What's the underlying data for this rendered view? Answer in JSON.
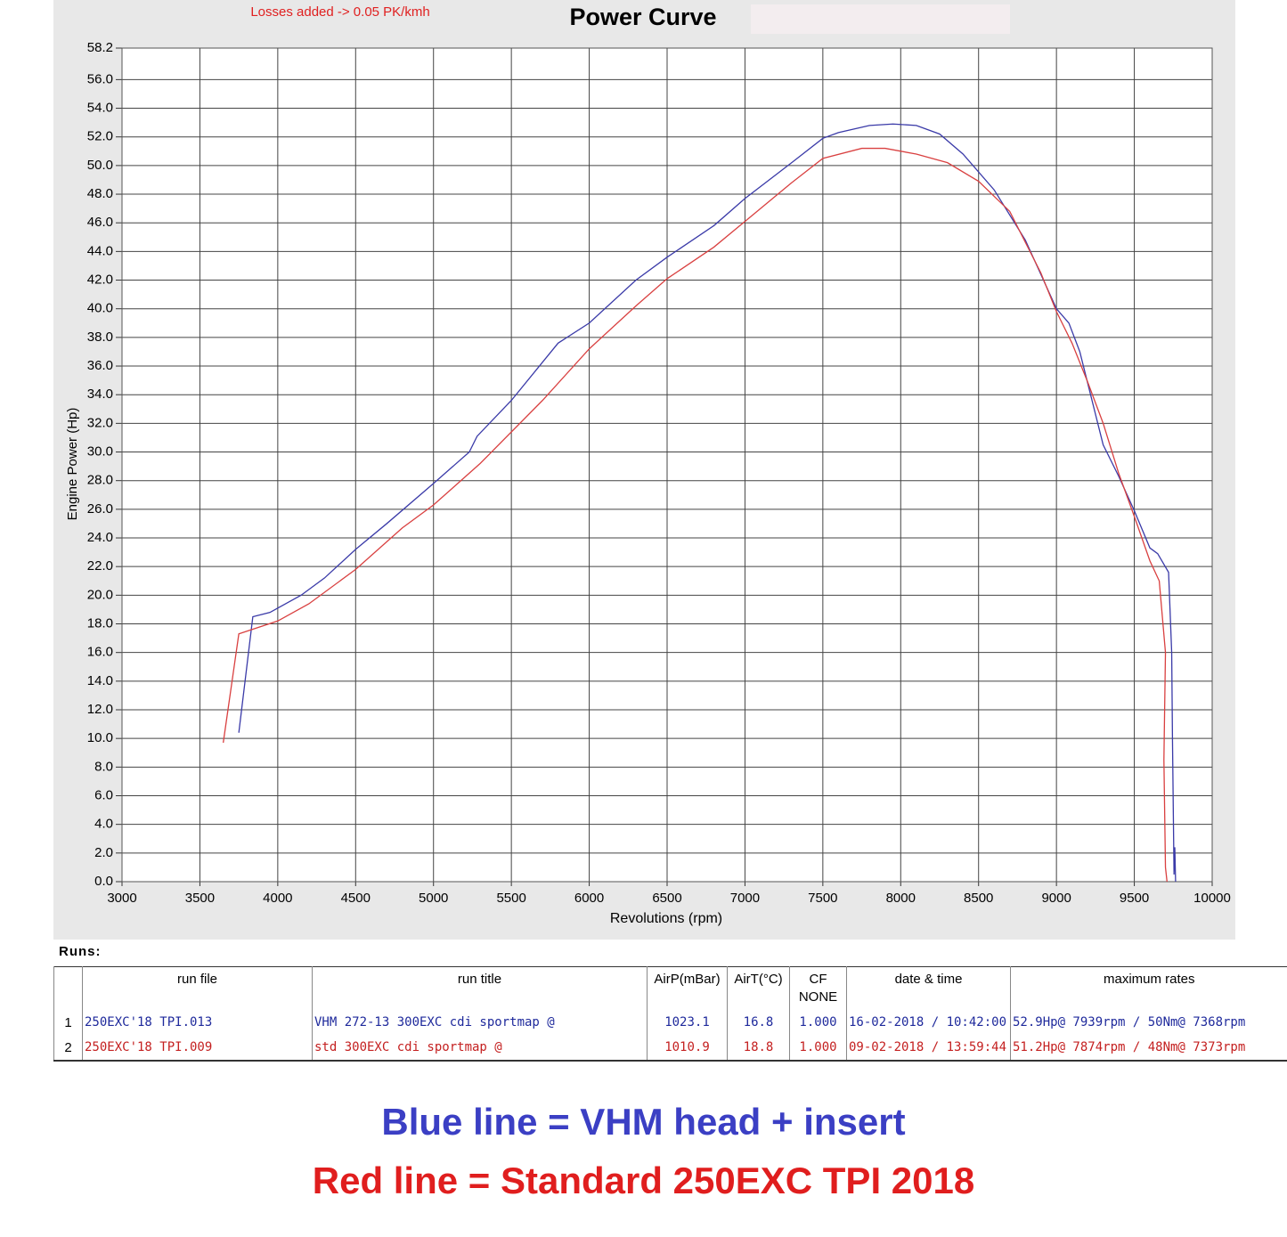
{
  "chart_data": {
    "type": "line",
    "title": "Power Curve",
    "annotation": "Losses added -> 0.05 PK/kmh",
    "x_label": "Revolutions (rpm)",
    "y_label": "Engine Power (Hp)",
    "xlim": [
      3000,
      10000
    ],
    "ylim": [
      0,
      58.2
    ],
    "grid": true,
    "xticks": [
      3000,
      3500,
      4000,
      4500,
      5000,
      5500,
      6000,
      6500,
      7000,
      7500,
      8000,
      8500,
      9000,
      9500,
      10000
    ],
    "yticks": [
      {
        "value": 0,
        "label": "0.0"
      },
      {
        "value": 2,
        "label": "2.0"
      },
      {
        "value": 4,
        "label": "4.0"
      },
      {
        "value": 6,
        "label": "6.0"
      },
      {
        "value": 8,
        "label": "8.0"
      },
      {
        "value": 10,
        "label": "10.0"
      },
      {
        "value": 12,
        "label": "12.0"
      },
      {
        "value": 14,
        "label": "14.0"
      },
      {
        "value": 16,
        "label": "16.0"
      },
      {
        "value": 18,
        "label": "18.0"
      },
      {
        "value": 20,
        "label": "20.0"
      },
      {
        "value": 22,
        "label": "22.0"
      },
      {
        "value": 24,
        "label": "24.0"
      },
      {
        "value": 26,
        "label": "26.0"
      },
      {
        "value": 28,
        "label": "28.0"
      },
      {
        "value": 30,
        "label": "30.0"
      },
      {
        "value": 32,
        "label": "32.0"
      },
      {
        "value": 34,
        "label": "34.0"
      },
      {
        "value": 36,
        "label": "36.0"
      },
      {
        "value": 38,
        "label": "38.0"
      },
      {
        "value": 40,
        "label": "40.0"
      },
      {
        "value": 42,
        "label": "42.0"
      },
      {
        "value": 44,
        "label": "44.0"
      },
      {
        "value": 46,
        "label": "46.0"
      },
      {
        "value": 48,
        "label": "48.0"
      },
      {
        "value": 50,
        "label": "50.0"
      },
      {
        "value": 52,
        "label": "52.0"
      },
      {
        "value": 54,
        "label": "54.0"
      },
      {
        "value": 56,
        "label": "56.0"
      },
      58.2
    ],
    "series": [
      {
        "color": "#3a3aa8",
        "x": [
          3750,
          3840,
          3950,
          4000,
          4150,
          4300,
          4500,
          4700,
          5000,
          5230,
          5280,
          5500,
          5800,
          6000,
          6300,
          6500,
          6800,
          7000,
          7300,
          7500,
          7600,
          7800,
          7950,
          8100,
          8250,
          8400,
          8600,
          8800,
          9000,
          9080,
          9150,
          9300,
          9400,
          9500,
          9600,
          9650,
          9720,
          9740,
          9745,
          9755,
          9760,
          9765
        ],
        "values": [
          10.4,
          18.5,
          18.8,
          19.1,
          20.0,
          21.2,
          23.2,
          25.0,
          27.8,
          30.0,
          31.1,
          33.6,
          37.6,
          39.0,
          42.0,
          43.6,
          45.8,
          47.7,
          50.2,
          51.9,
          52.3,
          52.8,
          52.9,
          52.8,
          52.2,
          50.8,
          48.3,
          44.8,
          40.0,
          39.0,
          37.0,
          30.5,
          28.3,
          25.9,
          23.3,
          22.9,
          21.6,
          16.0,
          10.0,
          0.5,
          2.4,
          0
        ]
      },
      {
        "color": "#d94040",
        "x": [
          3650,
          3750,
          4000,
          4200,
          4500,
          4800,
          5000,
          5300,
          5700,
          6000,
          6300,
          6500,
          6800,
          7000,
          7300,
          7500,
          7750,
          7900,
          8100,
          8300,
          8500,
          8700,
          8900,
          9000,
          9100,
          9200,
          9300,
          9400,
          9500,
          9600,
          9660,
          9700,
          9690,
          9700,
          9710
        ],
        "values": [
          9.7,
          17.3,
          18.2,
          19.4,
          21.8,
          24.7,
          26.3,
          29.2,
          33.6,
          37.2,
          40.2,
          42.1,
          44.3,
          46.1,
          48.8,
          50.5,
          51.2,
          51.2,
          50.8,
          50.2,
          48.9,
          46.8,
          42.5,
          39.8,
          37.6,
          34.9,
          32.0,
          28.5,
          25.5,
          22.4,
          21.0,
          16.0,
          8.5,
          1.0,
          0
        ]
      }
    ]
  },
  "runs_table": {
    "label": "Runs:",
    "header": [
      "",
      "run file",
      "run title",
      "AirP(mBar)",
      "AirT(°C)",
      "CF\nNONE",
      "date & time",
      "maximum rates"
    ],
    "rows": [
      [
        "1",
        "250EXC'18 TPI.013",
        "VHM 272-13  300EXC cdi sportmap  @",
        "1023.1",
        "16.8",
        "1.000",
        "16-02-2018 / 10:42:00",
        "52.9Hp@ 7939rpm / 50Nm@ 7368rpm"
      ],
      [
        "2",
        "250EXC'18 TPI.009",
        "std  300EXC cdi sportmap  @",
        "1010.9",
        "18.8",
        "1.000",
        "09-02-2018 / 13:59:44",
        "51.2Hp@ 7874rpm / 48Nm@ 7373rpm"
      ]
    ]
  },
  "captions": [
    "Blue line = VHM head + insert",
    "Red line = Standard 250EXC TPI 2018"
  ]
}
